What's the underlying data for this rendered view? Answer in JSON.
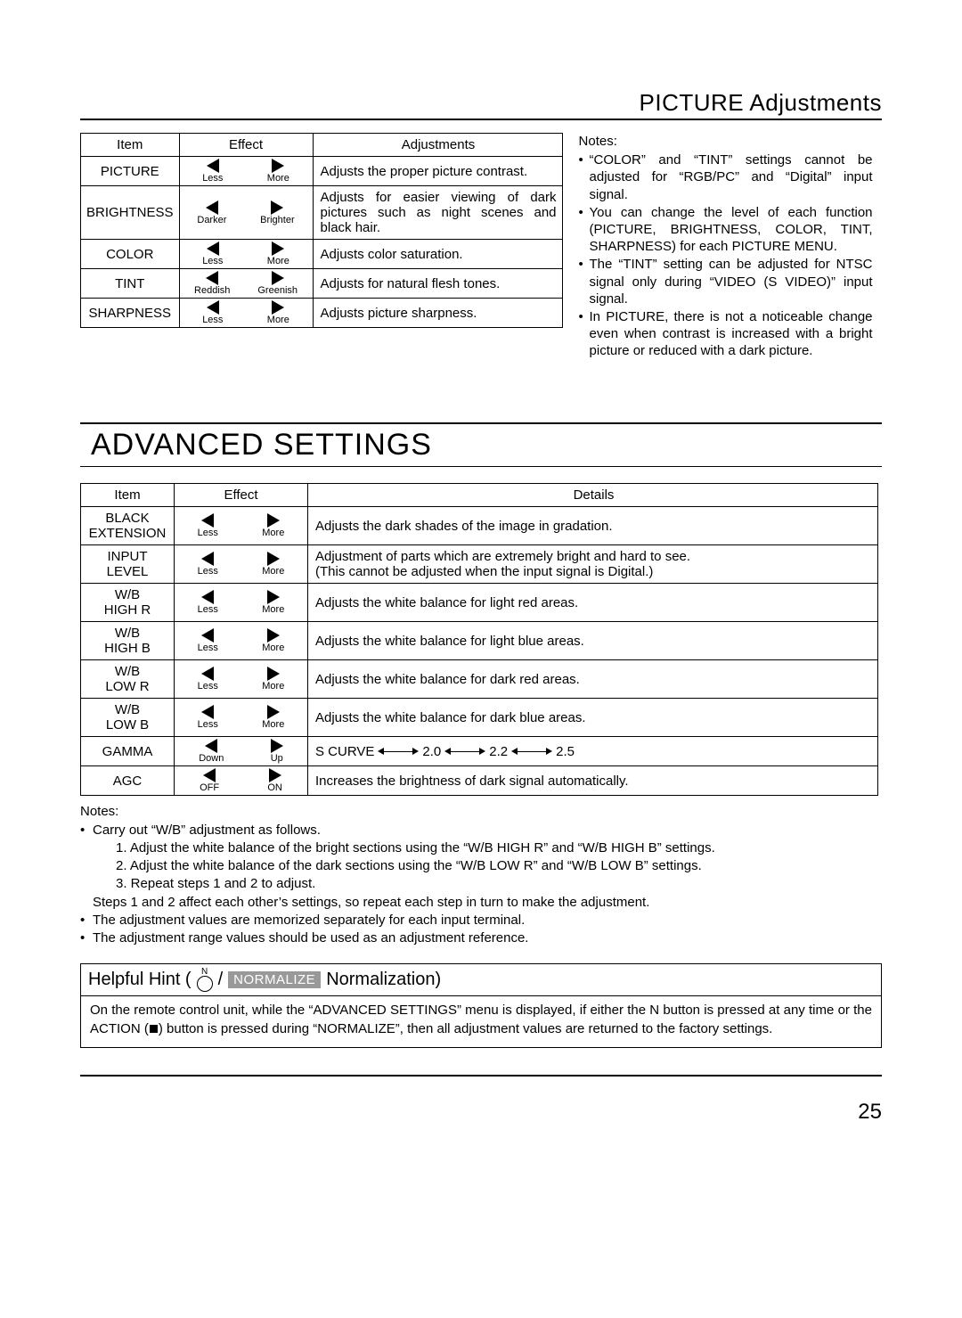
{
  "section_title": "PICTURE Adjustments",
  "table1": {
    "headers": {
      "item": "Item",
      "effect": "Effect",
      "adjustments": "Adjustments"
    },
    "rows": [
      {
        "item": "PICTURE",
        "left": "Less",
        "right": "More",
        "desc": "Adjusts the proper picture contrast."
      },
      {
        "item": "BRIGHTNESS",
        "left": "Darker",
        "right": "Brighter",
        "desc": "Adjusts for easier viewing of dark pictures such as night scenes and black hair.",
        "justify": true
      },
      {
        "item": "COLOR",
        "left": "Less",
        "right": "More",
        "desc": "Adjusts color saturation."
      },
      {
        "item": "TINT",
        "left": "Reddish",
        "right": "Greenish",
        "desc": "Adjusts for natural flesh tones."
      },
      {
        "item": "SHARPNESS",
        "left": "Less",
        "right": "More",
        "desc": "Adjusts picture sharpness."
      }
    ]
  },
  "notes_top": {
    "title": "Notes:",
    "items": [
      "“COLOR” and “TINT” settings cannot be adjusted for “RGB/PC” and “Digital” input signal.",
      "You can change the level of each function (PICTURE, BRIGHTNESS, COLOR, TINT, SHARPNESS) for each PICTURE MENU.",
      "The “TINT” setting can be adjusted for NTSC signal only during “VIDEO (S VIDEO)” input signal.",
      "In PICTURE, there is not a noticeable change even when contrast is increased with a bright picture or reduced with a dark picture."
    ]
  },
  "advanced_heading": "ADVANCED SETTINGS",
  "table2": {
    "headers": {
      "item": "Item",
      "effect": "Effect",
      "details": "Details"
    },
    "rows": [
      {
        "item": "BLACK EXTENSION",
        "left": "Less",
        "right": "More",
        "desc": "Adjusts the dark shades of the image in gradation."
      },
      {
        "item": "INPUT LEVEL",
        "left": "Less",
        "right": "More",
        "desc": "Adjustment of parts which are extremely bright and hard to see.\n(This cannot be adjusted when the input signal is Digital.)"
      },
      {
        "item": "W/B HIGH R",
        "left": "Less",
        "right": "More",
        "desc": "Adjusts the white balance for light red areas."
      },
      {
        "item": "W/B HIGH B",
        "left": "Less",
        "right": "More",
        "desc": "Adjusts the white balance for light blue areas."
      },
      {
        "item": "W/B LOW R",
        "left": "Less",
        "right": "More",
        "desc": "Adjusts the white balance for dark red areas."
      },
      {
        "item": "W/B LOW B",
        "left": "Less",
        "right": "More",
        "desc": "Adjusts the white balance for dark blue areas."
      },
      {
        "item": "GAMMA",
        "left": "Down",
        "right": "Up",
        "gamma": true,
        "g": [
          "S CURVE",
          "2.0",
          "2.2",
          "2.5"
        ]
      },
      {
        "item": "AGC",
        "left": "OFF",
        "right": "ON",
        "desc": "Increases the brightness of dark signal automatically."
      }
    ]
  },
  "notes_bottom": {
    "title": "Notes:",
    "lead": "Carry out “W/B” adjustment as follows.",
    "steps": [
      "1. Adjust the white balance of the bright sections using the “W/B HIGH R” and “W/B HIGH B” settings.",
      "2. Adjust the white balance of the dark sections using the “W/B LOW R” and “W/B LOW B” settings.",
      "3. Repeat steps 1 and 2 to adjust."
    ],
    "steps_after": "Steps 1 and 2 affect each other’s settings, so repeat each step in turn to make the adjustment.",
    "extra": [
      "The adjustment values are memorized separately for each input terminal.",
      "The adjustment range values should be used as an adjustment reference."
    ]
  },
  "hint": {
    "title_prefix": "Helpful Hint (",
    "n_label": "N",
    "slash": "/",
    "chip": "NORMALIZE",
    "title_suffix": " Normalization)",
    "body_a": "On the remote control unit, while the “ADVANCED SETTINGS” menu is displayed, if either the N button is pressed at any time or the ACTION (",
    "body_b": ") button is pressed during “NORMALIZE”, then all adjustment values are returned to the factory settings."
  },
  "page_number": "25"
}
